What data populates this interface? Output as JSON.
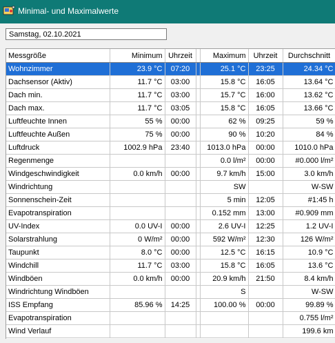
{
  "window": {
    "title": "Minimal- und Maximalwerte"
  },
  "date": "Samstag, 02.10.2021",
  "columns": {
    "name": "Messgröße",
    "min": "Minimum",
    "min_time": "Uhrzeit",
    "max": "Maximum",
    "max_time": "Uhrzeit",
    "avg": "Durchschnitt"
  },
  "rows": [
    {
      "name": "Wohnzimmer",
      "min": "23.9 °C",
      "min_time": "07:20",
      "max": "25.1 °C",
      "max_time": "23:25",
      "avg": "24.34 °C"
    },
    {
      "name": "Dachsensor (Aktiv)",
      "min": "11.7 °C",
      "min_time": "03:00",
      "max": "15.8 °C",
      "max_time": "16:05",
      "avg": "13.64 °C"
    },
    {
      "name": "Dach min.",
      "min": "11.7 °C",
      "min_time": "03:00",
      "max": "15.7 °C",
      "max_time": "16:00",
      "avg": "13.62 °C"
    },
    {
      "name": "Dach max.",
      "min": "11.7 °C",
      "min_time": "03:05",
      "max": "15.8 °C",
      "max_time": "16:05",
      "avg": "13.66 °C"
    },
    {
      "name": "Luftfeuchte Innen",
      "min": "55 %",
      "min_time": "00:00",
      "max": "62 %",
      "max_time": "09:25",
      "avg": "59 %"
    },
    {
      "name": "Luftfeuchte Außen",
      "min": "75 %",
      "min_time": "00:00",
      "max": "90 %",
      "max_time": "10:20",
      "avg": "84 %"
    },
    {
      "name": "Luftdruck",
      "min": "1002.9 hPa",
      "min_time": "23:40",
      "max": "1013.0 hPa",
      "max_time": "00:00",
      "avg": "1010.0 hPa"
    },
    {
      "name": "Regenmenge",
      "min": "",
      "min_time": "",
      "max": "0.0 l/m²",
      "max_time": "00:00",
      "avg": "#0.000 l/m²"
    },
    {
      "name": "Windgeschwindigkeit",
      "min": "0.0 km/h",
      "min_time": "00:00",
      "max": "9.7 km/h",
      "max_time": "15:00",
      "avg": "3.0 km/h"
    },
    {
      "name": "Windrichtung",
      "min": "",
      "min_time": "",
      "max": "SW",
      "max_time": "",
      "avg": "W-SW"
    },
    {
      "name": "Sonnenschein-Zeit",
      "min": "",
      "min_time": "",
      "max": "5 min",
      "max_time": "12:05",
      "avg": "#1:45 h"
    },
    {
      "name": "Evapotranspiration",
      "min": "",
      "min_time": "",
      "max": "0.152 mm",
      "max_time": "13:00",
      "avg": "#0.909 mm"
    },
    {
      "name": "UV-Index",
      "min": "0.0 UV-I",
      "min_time": "00:00",
      "max": "2.6 UV-I",
      "max_time": "12:25",
      "avg": "1.2 UV-I"
    },
    {
      "name": "Solarstrahlung",
      "min": "0 W/m²",
      "min_time": "00:00",
      "max": "592 W/m²",
      "max_time": "12:30",
      "avg": "126 W/m²"
    },
    {
      "name": "Taupunkt",
      "min": "8.0 °C",
      "min_time": "00:00",
      "max": "12.5 °C",
      "max_time": "16:15",
      "avg": "10.9 °C"
    },
    {
      "name": "Windchill",
      "min": "11.7 °C",
      "min_time": "03:00",
      "max": "15.8 °C",
      "max_time": "16:05",
      "avg": "13.6 °C"
    },
    {
      "name": "Windböen",
      "min": "0.0 km/h",
      "min_time": "00:00",
      "max": "20.9 km/h",
      "max_time": "21:50",
      "avg": "8.4 km/h"
    },
    {
      "name": "Windrichtung Windböen",
      "min": "",
      "min_time": "",
      "max": "S",
      "max_time": "",
      "avg": "W-SW"
    },
    {
      "name": "ISS Empfang",
      "min": "85.96 %",
      "min_time": "14:25",
      "max": "100.00 %",
      "max_time": "00:00",
      "avg": "99.89 %"
    },
    {
      "name": "Evapotranspiration",
      "min": "",
      "min_time": "",
      "max": "",
      "max_time": "",
      "avg": "0.755 l/m²"
    },
    {
      "name": "Wind Verlauf",
      "min": "",
      "min_time": "",
      "max": "",
      "max_time": "",
      "avg": "199.6 km"
    }
  ],
  "selected_row": 0,
  "colors": {
    "titlebar": "#0f7a76",
    "selection": "#1f6fd6"
  },
  "icons": {
    "app": "weather-station-icon"
  }
}
